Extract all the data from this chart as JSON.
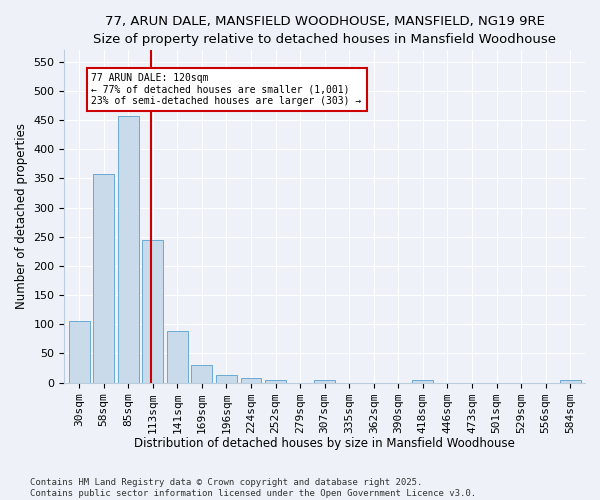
{
  "title": "77, ARUN DALE, MANSFIELD WOODHOUSE, MANSFIELD, NG19 9RE",
  "subtitle": "Size of property relative to detached houses in Mansfield Woodhouse",
  "xlabel": "Distribution of detached houses by size in Mansfield Woodhouse",
  "ylabel": "Number of detached properties",
  "categories": [
    "30sqm",
    "58sqm",
    "85sqm",
    "113sqm",
    "141sqm",
    "169sqm",
    "196sqm",
    "224sqm",
    "252sqm",
    "279sqm",
    "307sqm",
    "335sqm",
    "362sqm",
    "390sqm",
    "418sqm",
    "446sqm",
    "473sqm",
    "501sqm",
    "529sqm",
    "556sqm",
    "584sqm"
  ],
  "values": [
    105,
    358,
    457,
    245,
    88,
    30,
    13,
    8,
    5,
    0,
    5,
    0,
    0,
    0,
    5,
    0,
    0,
    0,
    0,
    0,
    5
  ],
  "bar_color": "#c9daea",
  "bar_edge_color": "#6aaad4",
  "vline_x_index": 3,
  "vline_color": "#cc0000",
  "annotation_title": "77 ARUN DALE: 120sqm",
  "annotation_line1": "← 77% of detached houses are smaller (1,001)",
  "annotation_line2": "23% of semi-detached houses are larger (303) →",
  "annotation_box_color": "#cc0000",
  "ylim": [
    0,
    570
  ],
  "yticks": [
    0,
    50,
    100,
    150,
    200,
    250,
    300,
    350,
    400,
    450,
    500,
    550
  ],
  "footer_line1": "Contains HM Land Registry data © Crown copyright and database right 2025.",
  "footer_line2": "Contains public sector information licensed under the Open Government Licence v3.0.",
  "bg_color": "#eef2f8",
  "plot_bg_color": "#eef2f8",
  "grid_color": "#ffffff",
  "title_fontsize": 9.5,
  "subtitle_fontsize": 9,
  "ylabel_fontsize": 8.5,
  "xlabel_fontsize": 8.5,
  "tick_fontsize": 8,
  "footer_fontsize": 6.5
}
